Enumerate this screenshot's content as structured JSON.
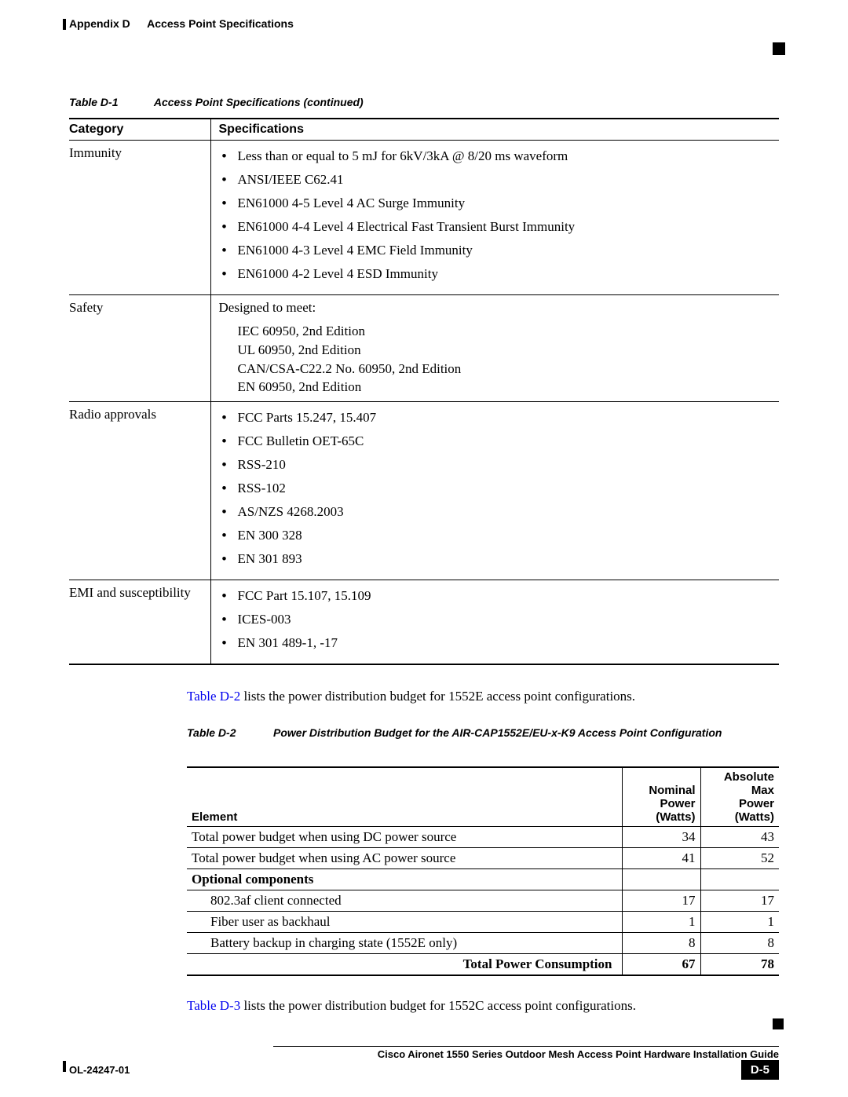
{
  "header": {
    "prefix": "Appendix D",
    "title": "Access Point Specifications"
  },
  "table1": {
    "caption_label": "Table D-1",
    "caption_text": "Access Point Specifications (continued)",
    "headers": {
      "col1": "Category",
      "col2": "Specifications"
    },
    "rows": [
      {
        "category": "Immunity",
        "type": "list",
        "items": [
          "Less than or equal to 5 mJ for 6kV/3kA @ 8/20 ms waveform",
          "ANSI/IEEE C62.41",
          "EN61000 4-5 Level 4 AC Surge Immunity",
          "EN61000 4-4 Level 4 Electrical Fast Transient Burst Immunity",
          "EN61000 4-3 Level 4 EMC Field Immunity",
          "EN61000 4-2 Level 4 ESD Immunity"
        ]
      },
      {
        "category": "Safety",
        "type": "text",
        "lead": "Designed to meet:",
        "lines": [
          "IEC 60950, 2nd Edition",
          "UL 60950, 2nd Edition",
          "CAN/CSA-C22.2 No. 60950, 2nd Edition",
          "EN 60950, 2nd Edition"
        ]
      },
      {
        "category": "Radio approvals",
        "type": "list",
        "items": [
          "FCC Parts 15.247, 15.407",
          "FCC Bulletin OET-65C",
          "RSS-210",
          "RSS-102",
          "AS/NZS 4268.2003",
          "EN 300 328",
          "EN 301 893"
        ]
      },
      {
        "category": "EMI and susceptibility",
        "type": "list",
        "items": [
          "FCC Part 15.107, 15.109",
          "ICES-003",
          "EN 301 489-1, -17"
        ]
      }
    ]
  },
  "paragraph1": {
    "link_text": "Table D-2",
    "rest": " lists the power distribution budget for 1552E access point configurations."
  },
  "table2": {
    "caption_label": "Table D-2",
    "caption_text": "Power Distribution Budget for the AIR-CAP1552E/EU-x-K9 Access Point Configuration",
    "headers": {
      "col1": "Element",
      "col2": "Nominal Power (Watts)",
      "col3": "Absolute Max Power (Watts)"
    },
    "rows": [
      {
        "label": "Total power budget when using DC power source",
        "nominal": "34",
        "max": "43",
        "indent": false
      },
      {
        "label": "Total power budget when using AC power source",
        "nominal": "41",
        "max": "52",
        "indent": false
      },
      {
        "label": "Optional components",
        "nominal": "",
        "max": "",
        "indent": false,
        "bold": true
      },
      {
        "label": "802.3af client connected",
        "nominal": "17",
        "max": "17",
        "indent": true
      },
      {
        "label": "Fiber user as backhaul",
        "nominal": "1",
        "max": "1",
        "indent": true
      },
      {
        "label": "Battery backup in charging state (1552E only)",
        "nominal": "8",
        "max": "8",
        "indent": true
      }
    ],
    "total": {
      "label": "Total Power Consumption",
      "nominal": "67",
      "max": "78"
    }
  },
  "paragraph2": {
    "link_text": "Table D-3",
    "rest": " lists the power distribution budget for 1552C access point configurations."
  },
  "footer": {
    "guide": "Cisco Aironet 1550 Series Outdoor Mesh Access Point Hardware Installation Guide",
    "docid": "OL-24247-01",
    "pagenum": "D-5"
  }
}
